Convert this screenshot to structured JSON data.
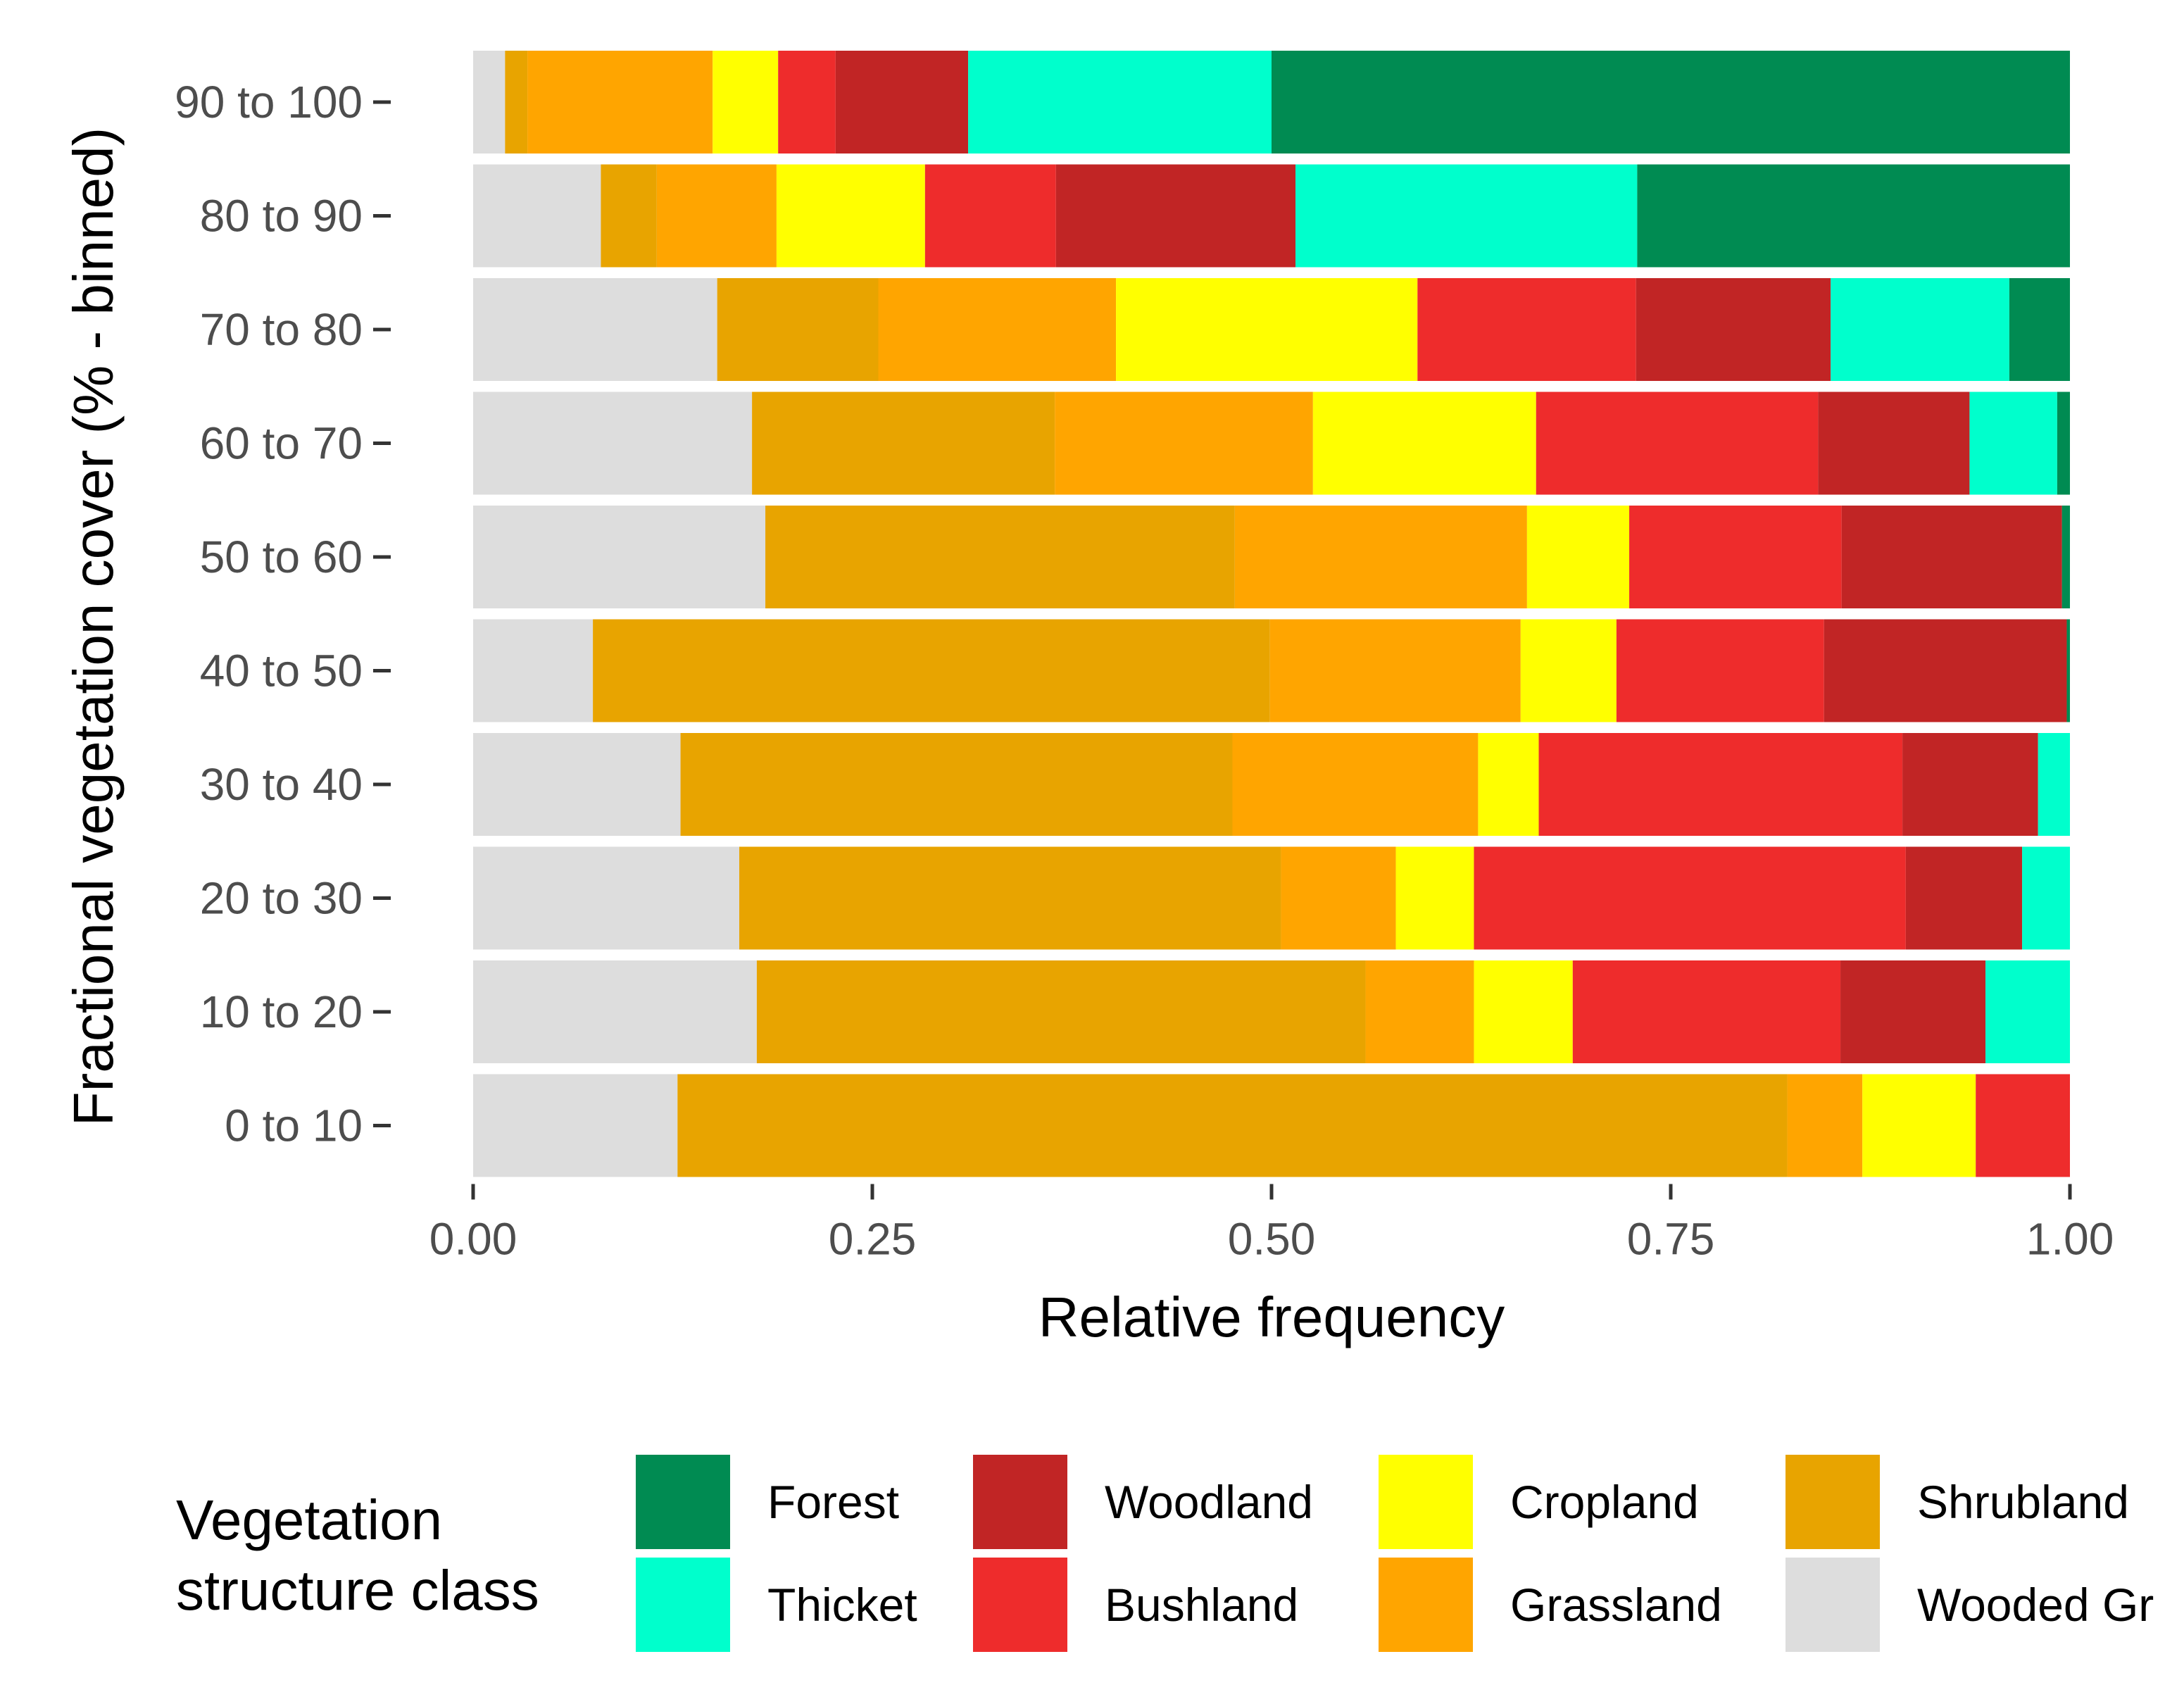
{
  "chart_data": {
    "type": "bar",
    "orientation": "horizontal",
    "stacked": true,
    "xlabel": "Relative frequency",
    "ylabel": "Fractional vegetation cover (% - binned)",
    "xlim": [
      0,
      1
    ],
    "xticks": [
      "0.00",
      "0.25",
      "0.50",
      "0.75",
      "1.00"
    ],
    "xtick_values": [
      0,
      0.25,
      0.5,
      0.75,
      1
    ],
    "categories": [
      "0 to 10",
      "10 to 20",
      "20 to 30",
      "30 to 40",
      "40 to 50",
      "50 to 60",
      "60 to 70",
      "70 to 80",
      "80 to 90",
      "90 to 100"
    ],
    "grid": false,
    "legend": {
      "title_lines": [
        "Vegetation",
        "structure class"
      ],
      "position": "bottom",
      "labels": [
        "Forest",
        "Thicket",
        "Woodland",
        "Bushland",
        "Cropland",
        "Grassland",
        "Shrubland",
        "Wooded Gr"
      ]
    },
    "series": [
      {
        "name": "Wooded Grassland",
        "color": "#dddddd",
        "values": [
          0.128,
          0.178,
          0.167,
          0.13,
          0.075,
          0.183,
          0.175,
          0.153,
          0.08,
          0.02
        ]
      },
      {
        "name": "Shrubland",
        "color": "#e8a400",
        "values": [
          0.695,
          0.382,
          0.34,
          0.346,
          0.424,
          0.294,
          0.19,
          0.101,
          0.035,
          0.014
        ]
      },
      {
        "name": "Grassland",
        "color": "#ffa500",
        "values": [
          0.047,
          0.068,
          0.072,
          0.154,
          0.157,
          0.183,
          0.162,
          0.149,
          0.075,
          0.116
        ]
      },
      {
        "name": "Cropland",
        "color": "#ffff00",
        "values": [
          0.071,
          0.062,
          0.049,
          0.038,
          0.06,
          0.064,
          0.14,
          0.189,
          0.093,
          0.041
        ]
      },
      {
        "name": "Bushland",
        "color": "#ee2c2c",
        "values": [
          0.059,
          0.168,
          0.271,
          0.228,
          0.13,
          0.133,
          0.177,
          0.137,
          0.082,
          0.036
        ]
      },
      {
        "name": "Woodland",
        "color": "#c12525",
        "values": [
          0,
          0.091,
          0.073,
          0.085,
          0.152,
          0.138,
          0.095,
          0.122,
          0.15,
          0.083
        ]
      },
      {
        "name": "Thicket",
        "color": "#00ffcc",
        "values": [
          0,
          0.053,
          0.03,
          0.02,
          0,
          0,
          0.055,
          0.112,
          0.214,
          0.19
        ]
      },
      {
        "name": "Forest",
        "color": "#008b52",
        "values": [
          0,
          0,
          0,
          0,
          0.002,
          0.005,
          0.008,
          0.038,
          0.271,
          0.5
        ]
      }
    ]
  }
}
